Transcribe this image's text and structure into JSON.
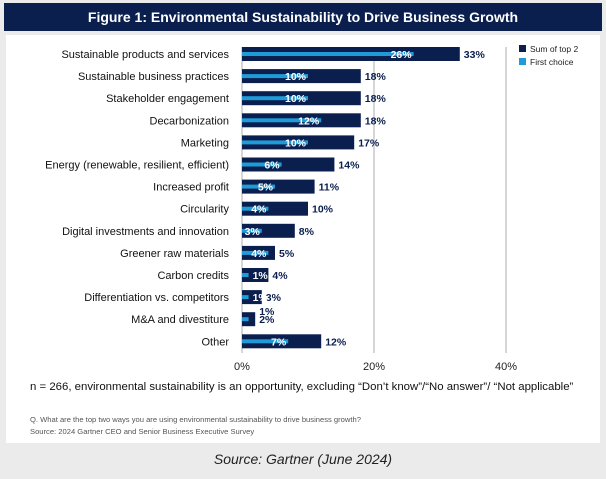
{
  "header": {
    "title": "Figure 1: Environmental Sustainability to Drive Business Growth"
  },
  "colors": {
    "sum_top2": "#0b1f4f",
    "first_choice": "#1f9bd7",
    "title_bg": "#0b1f4f"
  },
  "chart_data": {
    "type": "bar",
    "orientation": "horizontal",
    "title": "Figure 1: Environmental Sustainability to Drive Business Growth",
    "categories": [
      "Sustainable products and services",
      "Sustainable business practices",
      "Stakeholder engagement",
      "Decarbonization",
      "Marketing",
      "Energy (renewable, resilient, efficient)",
      "Increased profit",
      "Circularity",
      "Digital investments and innovation",
      "Greener raw materials",
      "Carbon credits",
      "Differentiation vs. competitors",
      "M&A and divestiture",
      "Other"
    ],
    "series": [
      {
        "name": "Sum of top 2",
        "values": [
          33,
          18,
          18,
          18,
          17,
          14,
          11,
          10,
          8,
          5,
          4,
          3,
          2,
          12
        ]
      },
      {
        "name": "First choice",
        "values": [
          26,
          10,
          10,
          12,
          10,
          6,
          5,
          4,
          3,
          4,
          1,
          1,
          1,
          7
        ]
      }
    ],
    "value_labels_sum": [
      "33%",
      "18%",
      "18%",
      "18%",
      "17%",
      "14%",
      "11%",
      "10%",
      "8%",
      "5%",
      "4%",
      "3%",
      "2%",
      "12%"
    ],
    "value_labels_first": [
      "26%",
      "10%",
      "10%",
      "12%",
      "10%",
      "6%",
      "5%",
      "4%",
      "3%",
      "4%",
      "1%",
      "1%",
      "1%",
      "7%"
    ],
    "xlim": [
      0,
      40
    ],
    "x_ticks": [
      0,
      20,
      40
    ],
    "x_tick_labels": [
      "0%",
      "20%",
      "40%"
    ],
    "legend": {
      "position": "top-right",
      "entries": [
        "Sum of top 2",
        "First choice"
      ]
    }
  },
  "notes": {
    "n_line": "n = 266, environmental sustainability is an opportunity, excluding “Don’t know”/“No answer”/ “Not applicable”",
    "question": "Q. What are the top two ways you are using environmental sustainability to drive business growth?",
    "source_small": "Source: 2024 Gartner CEO and Senior Business Executive Survey"
  },
  "caption": "Source: Gartner (June 2024)"
}
